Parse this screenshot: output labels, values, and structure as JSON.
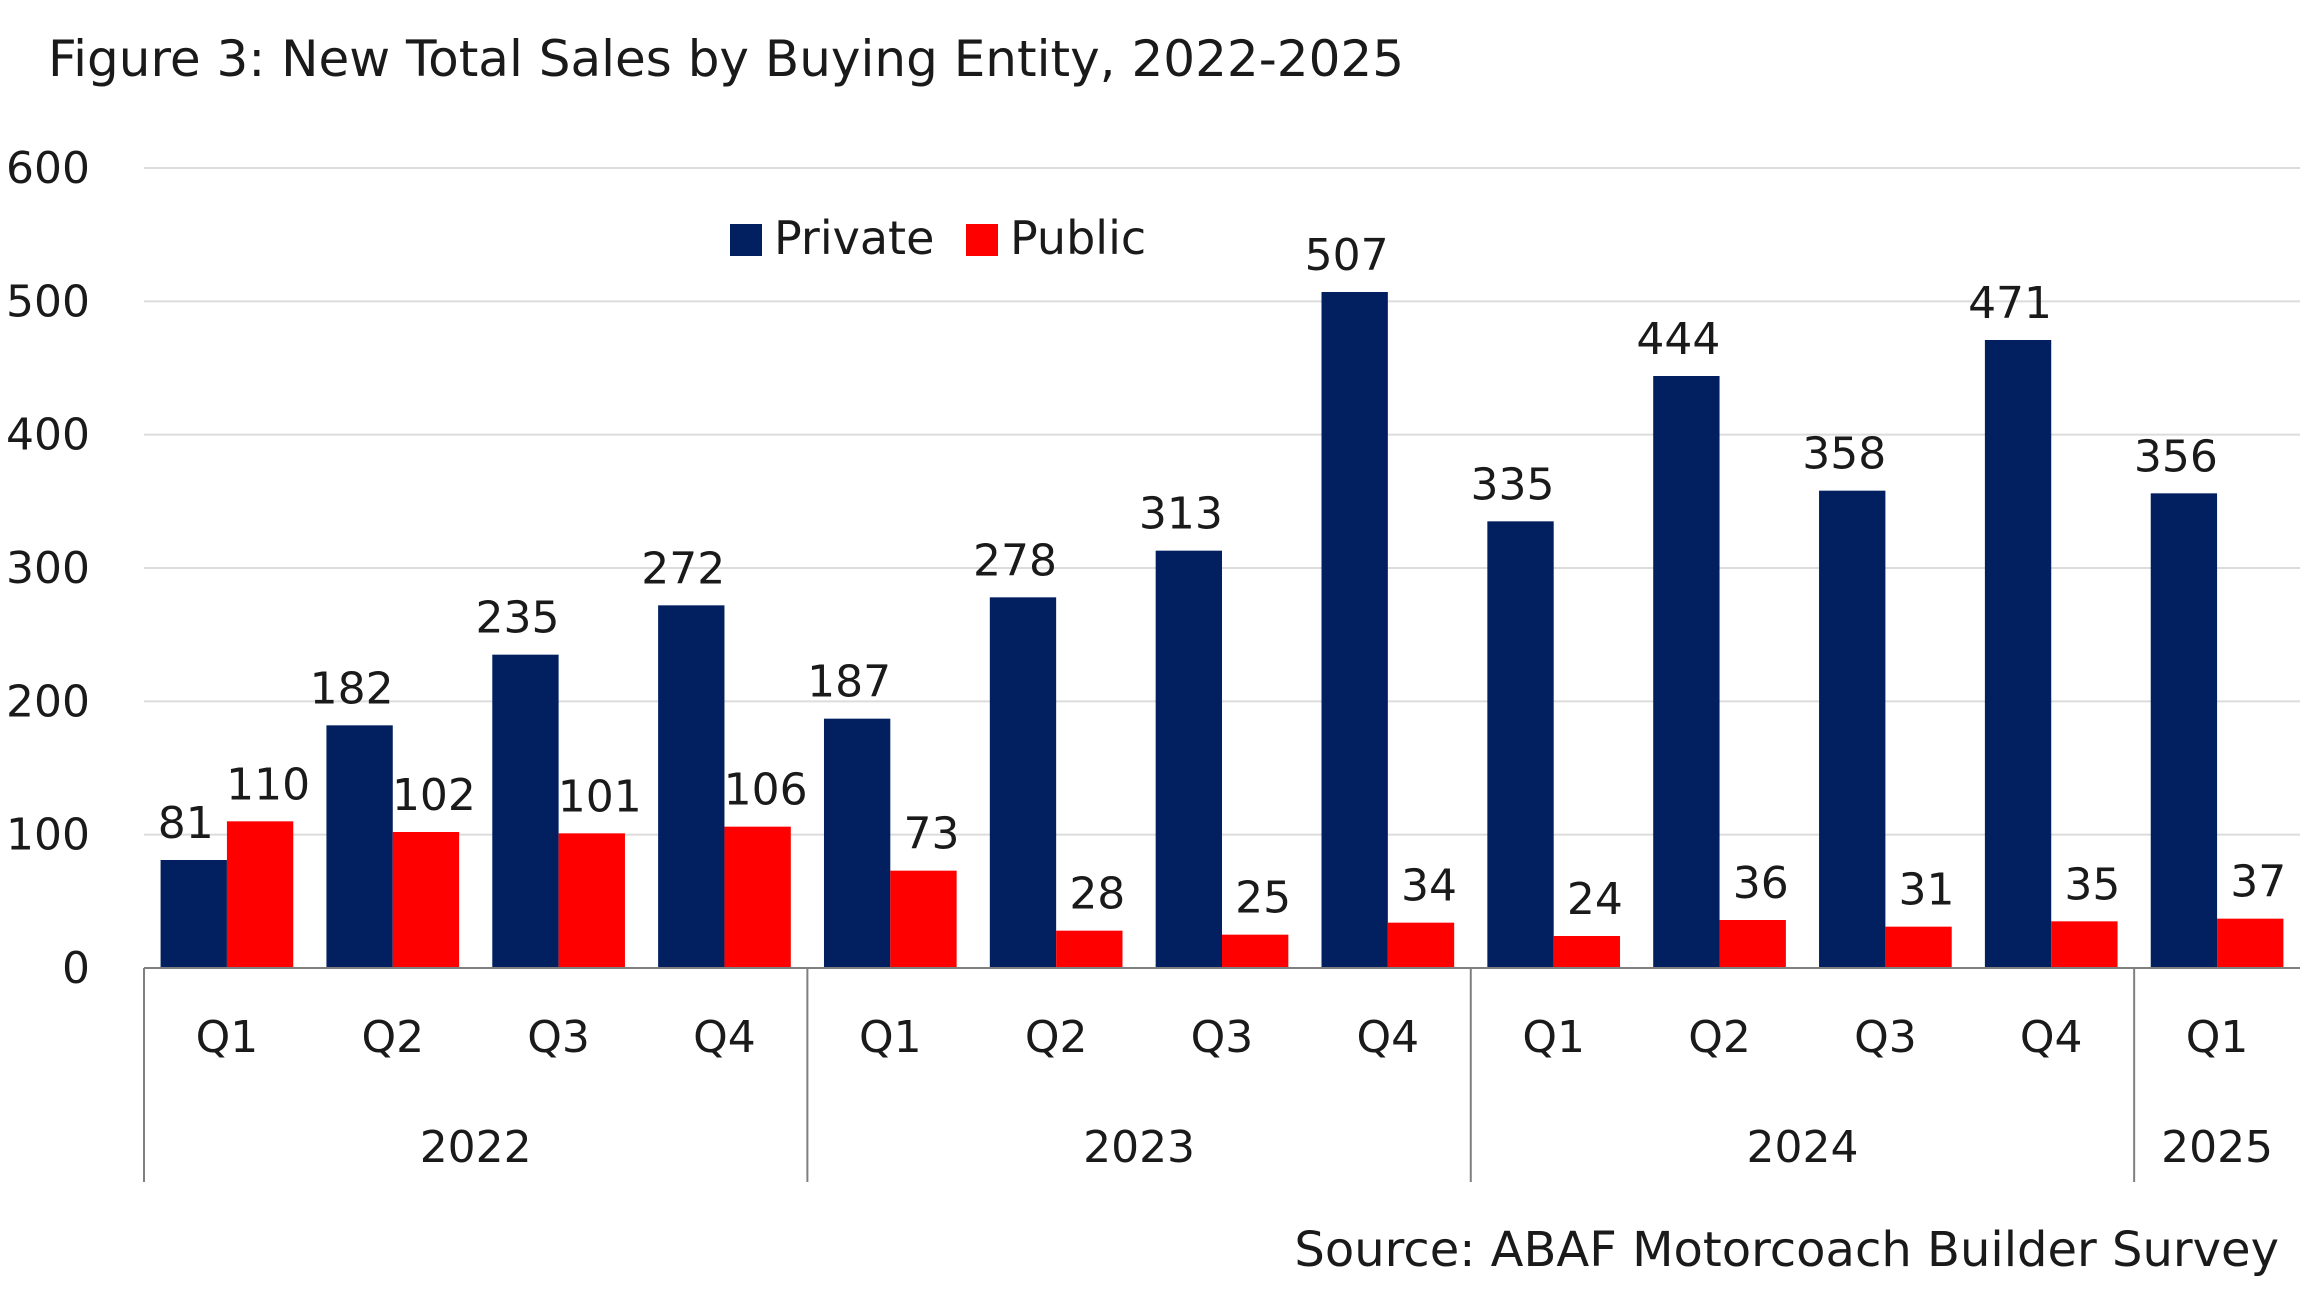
{
  "title": "Figure 3: New Total Sales by Buying Entity, 2022-2025",
  "source": "Source: ABAF Motorcoach Builder Survey",
  "chart_data": {
    "type": "bar",
    "title": "Figure 3: New Total Sales by Buying Entity, 2022-2025",
    "ylim": [
      0,
      600
    ],
    "yticks": [
      "0",
      "100",
      "200",
      "300",
      "400",
      "500",
      "600"
    ],
    "grid": true,
    "legend_position": "top-center",
    "categories": [
      "Q1",
      "Q2",
      "Q3",
      "Q4",
      "Q1",
      "Q2",
      "Q3",
      "Q4",
      "Q1",
      "Q2",
      "Q3",
      "Q4",
      "Q1"
    ],
    "groups": [
      {
        "label": "2022",
        "count": 4
      },
      {
        "label": "2023",
        "count": 4
      },
      {
        "label": "2024",
        "count": 4
      },
      {
        "label": "2025",
        "count": 1
      }
    ],
    "series": [
      {
        "name": "Private",
        "color": "#022060",
        "values": [
          81,
          182,
          235,
          272,
          187,
          278,
          313,
          507,
          335,
          444,
          358,
          471,
          356
        ]
      },
      {
        "name": "Public",
        "color": "#ff0000",
        "values": [
          110,
          102,
          101,
          106,
          73,
          28,
          25,
          34,
          24,
          36,
          31,
          35,
          37
        ]
      }
    ]
  }
}
